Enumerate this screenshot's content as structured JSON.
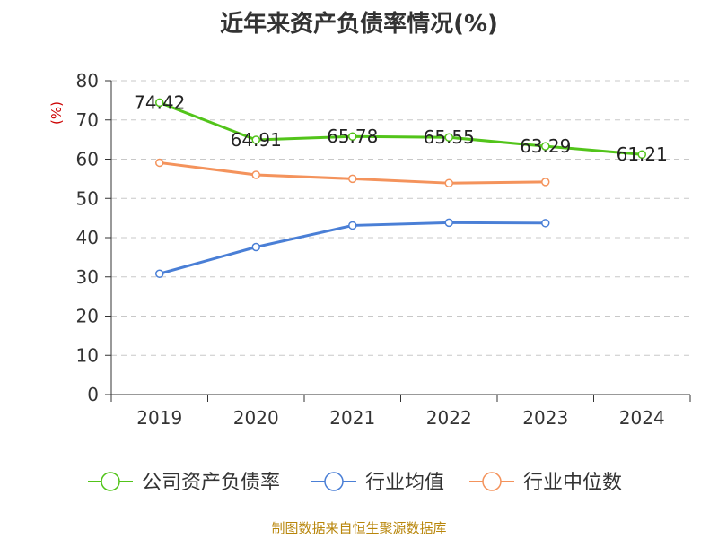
{
  "chart_data": {
    "type": "line",
    "title": "近年来资产负债率情况(%)",
    "ylabel": "(%)",
    "xlabel": "",
    "categories": [
      "2019",
      "2020",
      "2021",
      "2022",
      "2023",
      "2024"
    ],
    "ylim": [
      0,
      80
    ],
    "yticks": [
      "0",
      "10",
      "20",
      "30",
      "40",
      "50",
      "60",
      "70",
      "80"
    ],
    "grid": true,
    "legend_position": "bottom",
    "series": [
      {
        "name": "公司资产负债率",
        "color": "#52c41a",
        "values": [
          74.42,
          64.91,
          65.78,
          65.55,
          63.29,
          61.21
        ],
        "labels": [
          "74.42",
          "64.91",
          "65.78",
          "65.55",
          "63.29",
          "61.21"
        ]
      },
      {
        "name": "行业均值",
        "color": "#4a7fd6",
        "values": [
          30.8,
          37.6,
          43.1,
          43.8,
          43.7,
          null
        ]
      },
      {
        "name": "行业中位数",
        "color": "#f4935c",
        "values": [
          59.1,
          56.0,
          55.0,
          53.9,
          54.2,
          null
        ]
      }
    ]
  },
  "source_note": "制图数据来自恒生聚源数据库"
}
